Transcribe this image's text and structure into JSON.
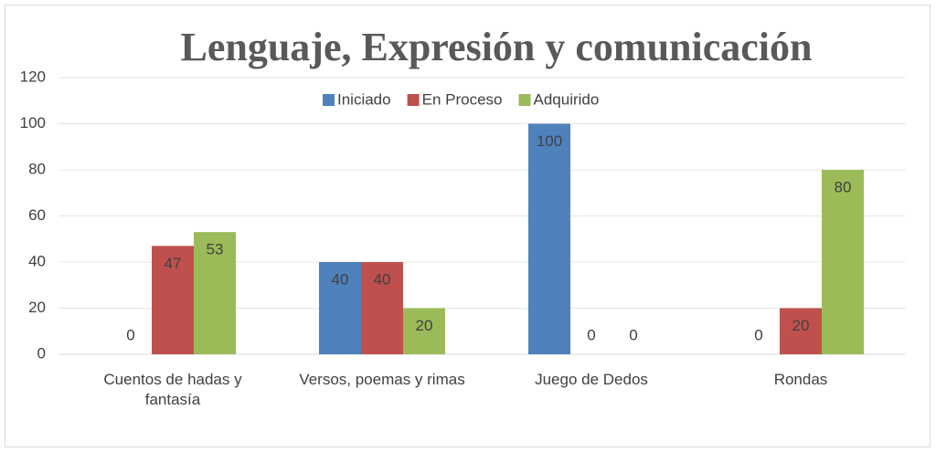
{
  "chart_data": {
    "type": "bar",
    "title": "Lenguaje, Expresión y comunicación",
    "categories": [
      "Cuentos de hadas y fantasía",
      "Versos, poemas y rimas",
      "Juego de Dedos",
      "Rondas"
    ],
    "series": [
      {
        "name": "Iniciado",
        "color": "#4f81bd",
        "values": [
          0,
          40,
          100,
          0
        ]
      },
      {
        "name": "En Proceso",
        "color": "#c0504d",
        "values": [
          47,
          40,
          0,
          20
        ]
      },
      {
        "name": "Adquirido",
        "color": "#9bbb59",
        "values": [
          53,
          20,
          0,
          80
        ]
      }
    ],
    "ylim": [
      0,
      120
    ],
    "yticks": [
      0,
      20,
      40,
      60,
      80,
      100,
      120
    ],
    "grid": true,
    "legend": "top"
  }
}
